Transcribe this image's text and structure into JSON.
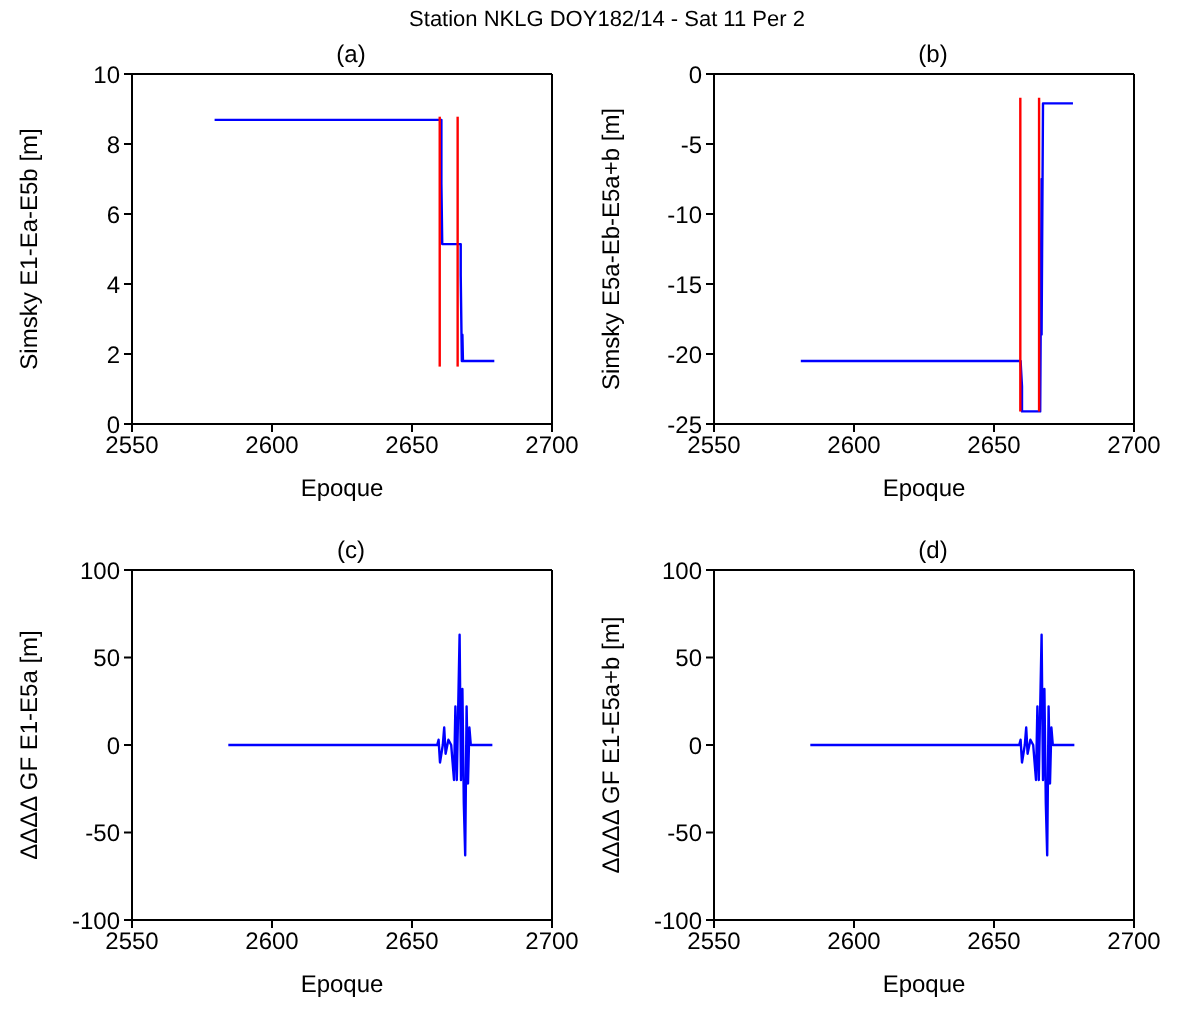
{
  "chart_data": [
    {
      "type": "line",
      "title": "(a)",
      "annotations": [
        "Station NKLG DOY182/14 - Sat  11 Per 2"
      ],
      "xlabel": "Epoque",
      "ylabel": "Simsky E1-Ea-E5b [m]",
      "xlim": [
        2550,
        2700
      ],
      "xticks": [
        2550,
        2600,
        2650,
        2700
      ],
      "ylim": [
        0,
        10
      ],
      "yticks": [
        0,
        2,
        4,
        6,
        8,
        10
      ],
      "series": [
        {
          "color": "#0000ff",
          "x": [
            2579.5,
            2660.5,
            2660.5,
            2660.8,
            2667.4,
            2667.4,
            2667.8,
            2668,
            2668.2,
            2679.4
          ],
          "values": [
            8.69,
            8.69,
            6.87,
            5.14,
            5.14,
            4.26,
            1.8,
            2.55,
            1.8,
            1.8
          ]
        },
        {
          "color": "#ff0000",
          "x": [
            2659.9,
            2659.9
          ],
          "values": [
            1.64,
            8.78
          ]
        },
        {
          "color": "#ff0000",
          "x": [
            2666.3,
            2666.3
          ],
          "values": [
            1.64,
            8.78
          ]
        }
      ]
    },
    {
      "type": "line",
      "title": "(b)",
      "xlabel": "Epoque",
      "ylabel": "Simsky E5a-Eb-E5a+b [m]",
      "xlim": [
        2550,
        2700
      ],
      "xticks": [
        2550,
        2600,
        2650,
        2700
      ],
      "ylim": [
        -25,
        0
      ],
      "yticks": [
        -25,
        -20,
        -15,
        -10,
        -5,
        0
      ],
      "series": [
        {
          "color": "#0000ff",
          "x": [
            2581,
            2659.5,
            2660,
            2660,
            2666.5,
            2667,
            2667,
            2667.5,
            2678.2
          ],
          "values": [
            -20.5,
            -20.5,
            -22.3,
            -24.1,
            -24.1,
            -7.5,
            -18.6,
            -2.1,
            -2.1
          ]
        },
        {
          "color": "#ff0000",
          "x": [
            2659.4,
            2659.4
          ],
          "values": [
            -24.1,
            -1.7
          ]
        },
        {
          "color": "#ff0000",
          "x": [
            2666.1,
            2666.1
          ],
          "values": [
            -24.1,
            -1.7
          ]
        }
      ]
    },
    {
      "type": "line",
      "title": "(c)",
      "xlabel": "Epoque",
      "ylabel": "ΔΔΔΔ GF E1-E5a [m]",
      "xlim": [
        2550,
        2700
      ],
      "xticks": [
        2550,
        2600,
        2650,
        2700
      ],
      "ylim": [
        -100,
        100
      ],
      "yticks": [
        -100,
        -50,
        0,
        50,
        100
      ],
      "series": [
        {
          "color": "#0000ff",
          "x": [
            2584.4,
            2659,
            2659.5,
            2660,
            2661,
            2661.5,
            2662,
            2663,
            2664,
            2665,
            2665.5,
            2666,
            2667,
            2667.5,
            2668,
            2668.5,
            2669,
            2669.5,
            2670,
            2670.5,
            2671,
            2678.7
          ],
          "values": [
            0,
            0,
            3,
            -10,
            0,
            10,
            -5,
            3,
            0,
            -20,
            22,
            -20,
            63,
            -20,
            32,
            -33,
            -63,
            22,
            -22,
            10,
            0,
            0
          ]
        }
      ]
    },
    {
      "type": "line",
      "title": "(d)",
      "xlabel": "Epoque",
      "ylabel": "ΔΔΔΔ GF E1-E5a+b [m]",
      "xlim": [
        2550,
        2700
      ],
      "xticks": [
        2550,
        2600,
        2650,
        2700
      ],
      "ylim": [
        -100,
        100
      ],
      "yticks": [
        -100,
        -50,
        0,
        50,
        100
      ],
      "series": [
        {
          "color": "#0000ff",
          "x": [
            2584.4,
            2659,
            2659.5,
            2660,
            2661,
            2661.5,
            2662,
            2663,
            2664,
            2665,
            2665.5,
            2666,
            2667,
            2667.5,
            2668,
            2668.5,
            2669,
            2669.5,
            2670,
            2670.5,
            2671,
            2678.7
          ],
          "values": [
            0,
            0,
            3,
            -10,
            0,
            10,
            -5,
            3,
            0,
            -20,
            22,
            -20,
            63,
            -20,
            32,
            -33,
            -63,
            22,
            -22,
            10,
            0,
            0
          ]
        }
      ]
    }
  ]
}
